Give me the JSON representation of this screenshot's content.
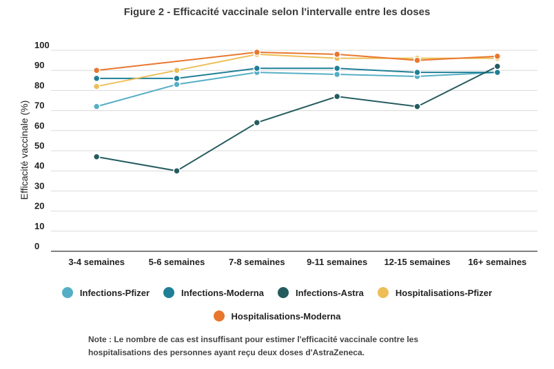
{
  "chart_data": {
    "type": "line",
    "title": "Figure 2 - Efficacité vaccinale selon l'intervalle entre les doses",
    "ylabel": "Efficacité vaccinale (%)",
    "xlabel": "",
    "categories": [
      "3-4 semaines",
      "5-6 semaines",
      "7-8 semaines",
      "9-11 semaines",
      "12-15 semaines",
      "16+ semaines"
    ],
    "ylim": [
      0,
      100
    ],
    "yticks": [
      0,
      10,
      20,
      30,
      40,
      50,
      60,
      70,
      80,
      90,
      100
    ],
    "grid": true,
    "legend_position": "bottom",
    "series": [
      {
        "name": "Infections-Pfizer",
        "color": "#56AEC6",
        "values": [
          72,
          83,
          89,
          88,
          87,
          89
        ]
      },
      {
        "name": "Infections-Moderna",
        "color": "#1F7F96",
        "values": [
          86,
          86,
          91,
          91,
          89,
          89
        ]
      },
      {
        "name": "Infections-Astra",
        "color": "#245B5E",
        "values": [
          47,
          40,
          64,
          77,
          72,
          92
        ]
      },
      {
        "name": "Hospitalisations-Pfizer",
        "color": "#EDBE57",
        "values": [
          82,
          90,
          98,
          96,
          96,
          96
        ]
      },
      {
        "name": "Hospitalisations-Moderna",
        "color": "#E8772E",
        "values": [
          90,
          null,
          99,
          98,
          95,
          97
        ]
      }
    ],
    "note": "Note : Le nombre de cas est insuffisant pour estimer l'efficacité vaccinale contre les hospitalisations des personnes ayant reçu deux doses d'AstraZeneca."
  }
}
